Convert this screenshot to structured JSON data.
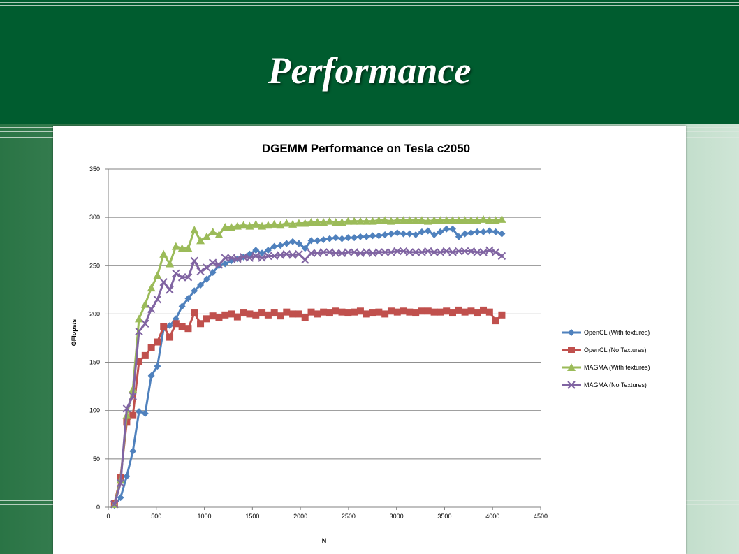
{
  "slide": {
    "title": "Performance"
  },
  "colors": {
    "band": "#005c2f",
    "grid": "#808080"
  },
  "chart_data": {
    "type": "line",
    "title": "DGEMM Performance on Tesla c2050",
    "xlabel": "N",
    "ylabel": "GFlops/s",
    "xlim": [
      0,
      4500
    ],
    "ylim": [
      0,
      350
    ],
    "xticks": [
      0,
      500,
      1000,
      1500,
      2000,
      2500,
      3000,
      3500,
      4000,
      4500
    ],
    "yticks": [
      0,
      50,
      100,
      150,
      200,
      250,
      300,
      350
    ],
    "grid": "horizontal",
    "legend": "right",
    "series": [
      {
        "name": "OpenCL (With textures)",
        "color": "#4f81bd",
        "marker": "diamond",
        "x": [
          64,
          128,
          192,
          256,
          320,
          384,
          448,
          512,
          576,
          640,
          704,
          768,
          832,
          896,
          960,
          1024,
          1088,
          1152,
          1216,
          1280,
          1344,
          1408,
          1472,
          1536,
          1600,
          1664,
          1728,
          1792,
          1856,
          1920,
          1984,
          2048,
          2112,
          2176,
          2240,
          2304,
          2368,
          2432,
          2496,
          2560,
          2624,
          2688,
          2752,
          2816,
          2880,
          2944,
          3008,
          3072,
          3136,
          3200,
          3264,
          3328,
          3392,
          3456,
          3520,
          3584,
          3648,
          3712,
          3776,
          3840,
          3904,
          3968,
          4032,
          4096
        ],
        "y": [
          2,
          10,
          32,
          58,
          99,
          97,
          136,
          146,
          185,
          188,
          195,
          208,
          216,
          224,
          230,
          236,
          243,
          250,
          252,
          255,
          257,
          259,
          262,
          266,
          263,
          266,
          270,
          271,
          273,
          275,
          273,
          268,
          276,
          276,
          277,
          278,
          279,
          278,
          279,
          279,
          280,
          280,
          281,
          281,
          282,
          283,
          284,
          283,
          283,
          282,
          285,
          286,
          282,
          285,
          288,
          288,
          280,
          283,
          284,
          285,
          285,
          286,
          285,
          283
        ]
      },
      {
        "name": "OpenCL (No Textures)",
        "color": "#c0504d",
        "marker": "square",
        "x": [
          64,
          128,
          192,
          256,
          320,
          384,
          448,
          512,
          576,
          640,
          704,
          768,
          832,
          896,
          960,
          1024,
          1088,
          1152,
          1216,
          1280,
          1344,
          1408,
          1472,
          1536,
          1600,
          1664,
          1728,
          1792,
          1856,
          1920,
          1984,
          2048,
          2112,
          2176,
          2240,
          2304,
          2368,
          2432,
          2496,
          2560,
          2624,
          2688,
          2752,
          2816,
          2880,
          2944,
          3008,
          3072,
          3136,
          3200,
          3264,
          3328,
          3392,
          3456,
          3520,
          3584,
          3648,
          3712,
          3776,
          3840,
          3904,
          3968,
          4032,
          4096
        ],
        "y": [
          4,
          31,
          88,
          95,
          151,
          157,
          165,
          171,
          187,
          176,
          190,
          187,
          185,
          201,
          190,
          195,
          198,
          196,
          199,
          200,
          197,
          201,
          200,
          199,
          201,
          199,
          201,
          198,
          202,
          200,
          200,
          196,
          202,
          200,
          202,
          201,
          203,
          202,
          201,
          202,
          203,
          200,
          201,
          202,
          200,
          203,
          202,
          203,
          202,
          201,
          203,
          203,
          202,
          202,
          203,
          201,
          204,
          202,
          203,
          201,
          204,
          202,
          193,
          199
        ]
      },
      {
        "name": "MAGMA (With textures)",
        "color": "#9bbb59",
        "marker": "triangle",
        "x": [
          64,
          128,
          192,
          256,
          320,
          384,
          448,
          512,
          576,
          640,
          704,
          768,
          832,
          896,
          960,
          1024,
          1088,
          1152,
          1216,
          1280,
          1344,
          1408,
          1472,
          1536,
          1600,
          1664,
          1728,
          1792,
          1856,
          1920,
          1984,
          2048,
          2112,
          2176,
          2240,
          2304,
          2368,
          2432,
          2496,
          2560,
          2624,
          2688,
          2752,
          2816,
          2880,
          2944,
          3008,
          3072,
          3136,
          3200,
          3264,
          3328,
          3392,
          3456,
          3520,
          3584,
          3648,
          3712,
          3776,
          3840,
          3904,
          3968,
          4032,
          4096
        ],
        "y": [
          3,
          28,
          95,
          122,
          195,
          210,
          227,
          240,
          262,
          252,
          270,
          268,
          268,
          287,
          276,
          280,
          285,
          282,
          290,
          290,
          291,
          292,
          291,
          293,
          291,
          292,
          293,
          292,
          294,
          293,
          294,
          294,
          295,
          295,
          295,
          296,
          295,
          295,
          296,
          296,
          296,
          296,
          296,
          297,
          297,
          296,
          297,
          297,
          297,
          297,
          297,
          296,
          297,
          297,
          297,
          297,
          297,
          297,
          297,
          297,
          298,
          297,
          297,
          298
        ]
      },
      {
        "name": "MAGMA (No Textures)",
        "color": "#8064a2",
        "marker": "x",
        "x": [
          64,
          128,
          192,
          256,
          320,
          384,
          448,
          512,
          576,
          640,
          704,
          768,
          832,
          896,
          960,
          1024,
          1088,
          1152,
          1216,
          1280,
          1344,
          1408,
          1472,
          1536,
          1600,
          1664,
          1728,
          1792,
          1856,
          1920,
          1984,
          2048,
          2112,
          2176,
          2240,
          2304,
          2368,
          2432,
          2496,
          2560,
          2624,
          2688,
          2752,
          2816,
          2880,
          2944,
          3008,
          3072,
          3136,
          3200,
          3264,
          3328,
          3392,
          3456,
          3520,
          3584,
          3648,
          3712,
          3776,
          3840,
          3904,
          3968,
          4032,
          4096
        ],
        "y": [
          3,
          25,
          102,
          115,
          182,
          190,
          205,
          215,
          233,
          225,
          242,
          238,
          238,
          255,
          244,
          248,
          253,
          251,
          258,
          258,
          257,
          259,
          258,
          260,
          258,
          260,
          260,
          261,
          262,
          261,
          262,
          256,
          263,
          263,
          264,
          264,
          263,
          263,
          264,
          264,
          263,
          264,
          263,
          264,
          264,
          264,
          265,
          265,
          264,
          264,
          264,
          265,
          264,
          264,
          265,
          264,
          265,
          265,
          265,
          264,
          264,
          266,
          264,
          260
        ]
      }
    ]
  }
}
